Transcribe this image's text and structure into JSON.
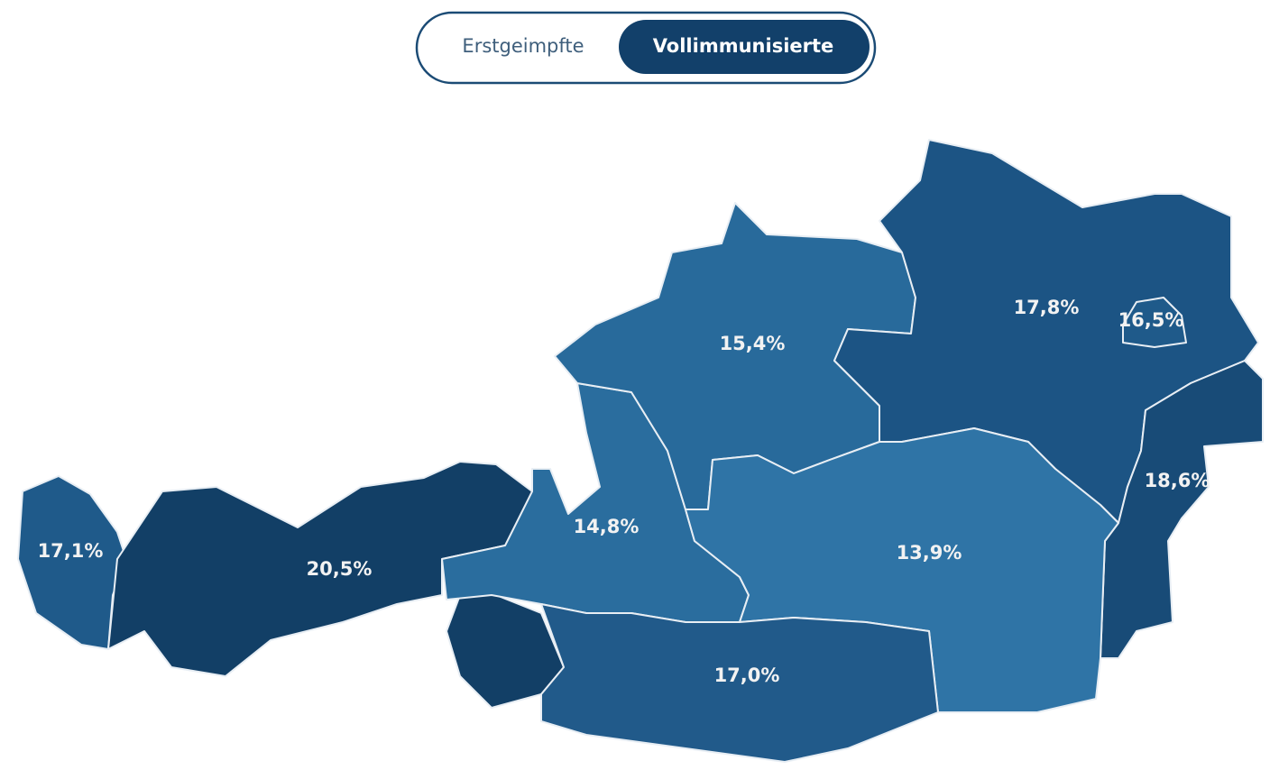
{
  "toggle": {
    "options": [
      "Erstgeimpfte",
      "Vollimmunisierte"
    ],
    "active": 1
  },
  "regions": [
    {
      "label": "17,1%",
      "color": "#1f5a8a"
    },
    {
      "label": "20,5%",
      "color": "#123f66"
    },
    {
      "label": "14,8%",
      "color": "#2a6d9e"
    },
    {
      "label": "15,4%",
      "color": "#286a9b"
    },
    {
      "label": "17,8%",
      "color": "#1c5484"
    },
    {
      "label": "16,5%",
      "color": "#1f5a8a"
    },
    {
      "label": "18,6%",
      "color": "#184b77"
    },
    {
      "label": "13,9%",
      "color": "#2f74a6"
    },
    {
      "label": "17,0%",
      "color": "#215a8a"
    }
  ]
}
